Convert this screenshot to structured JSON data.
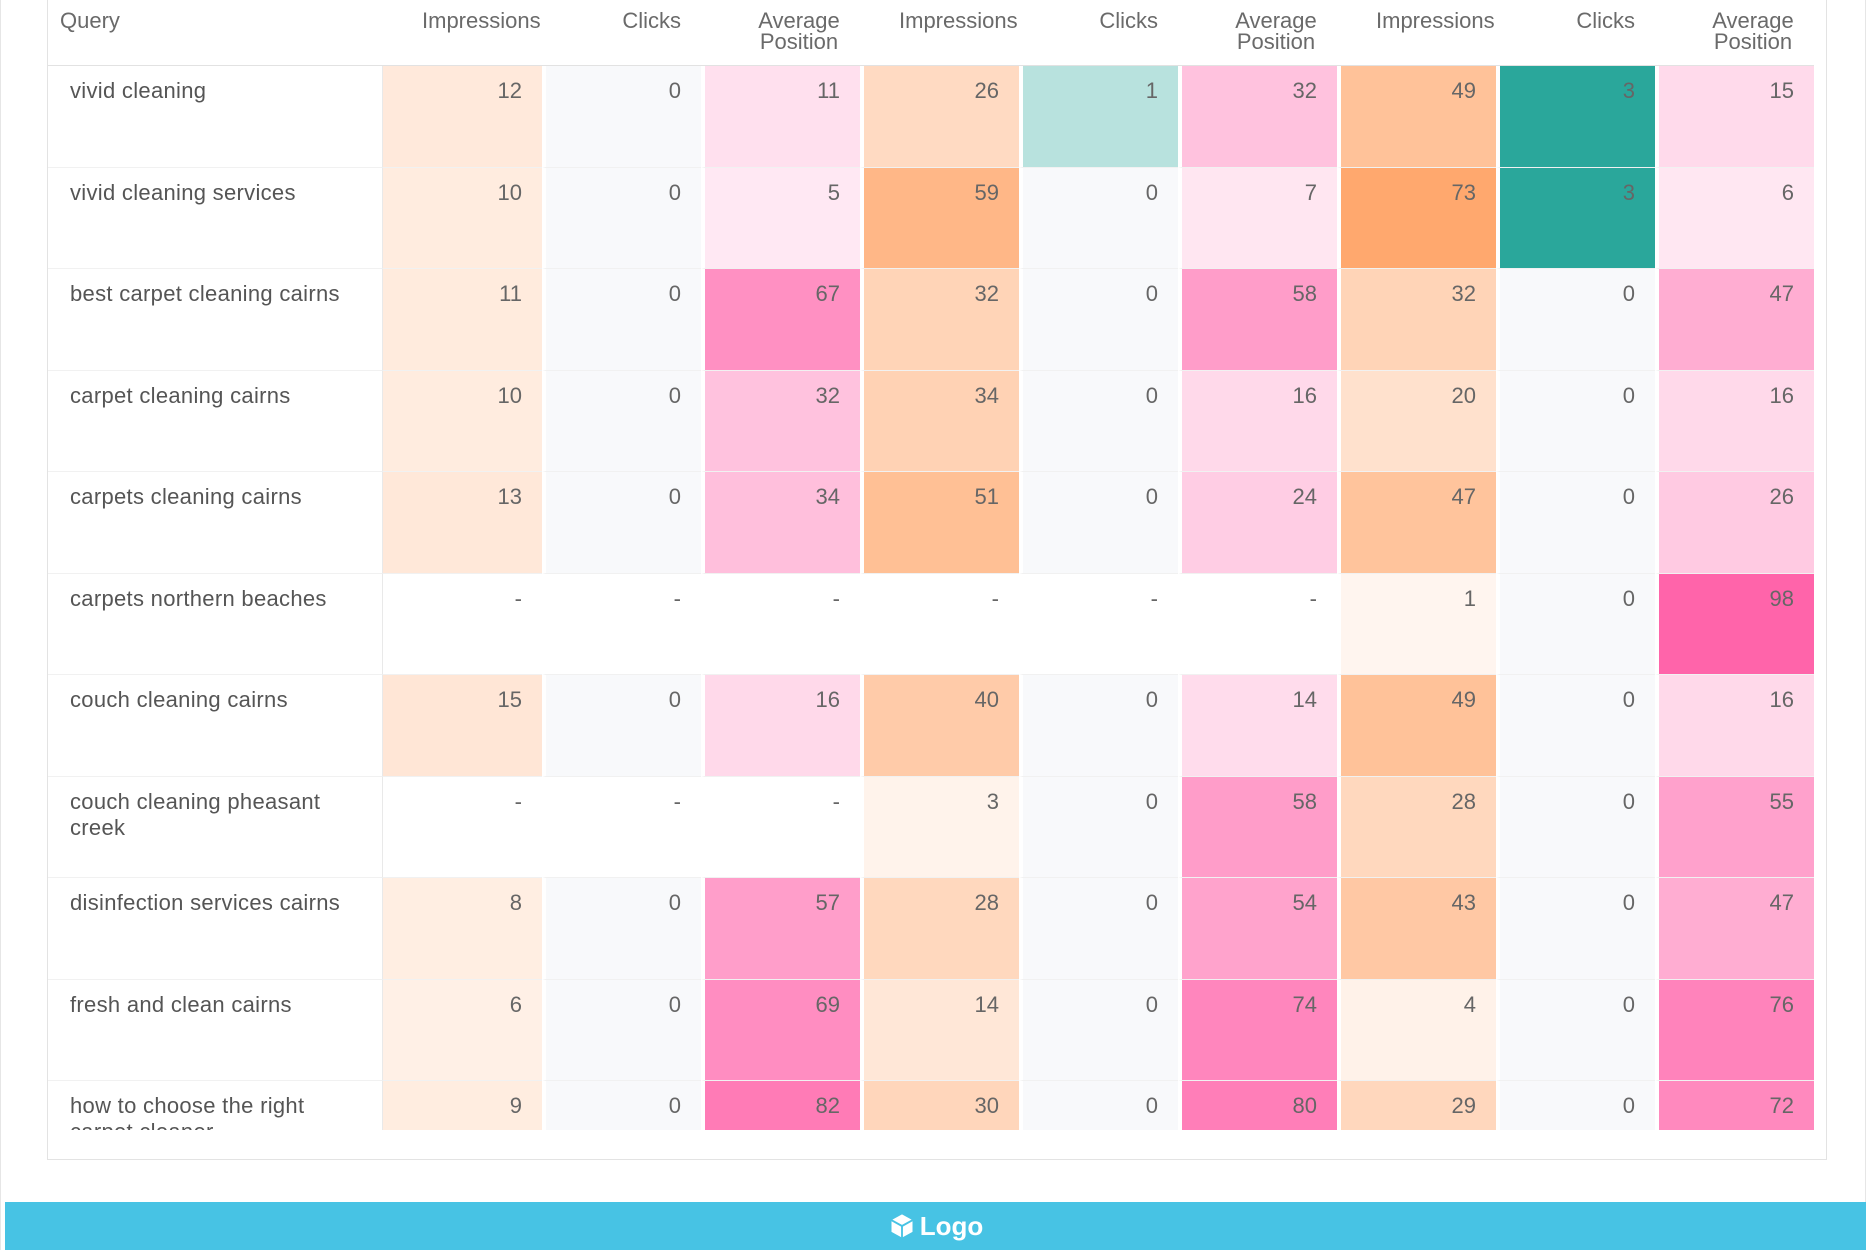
{
  "table": {
    "headers": [
      "Query",
      "Impressions",
      "Clicks",
      "Average Position",
      "Impressions",
      "Clicks",
      "Average Position",
      "Impressions",
      "Clicks",
      "Average Position"
    ],
    "rows": [
      {
        "query": "vivid cleaning",
        "values": [
          "12",
          "0",
          "11",
          "26",
          "1",
          "32",
          "49",
          "3",
          "15"
        ]
      },
      {
        "query": "vivid cleaning services",
        "values": [
          "10",
          "0",
          "5",
          "59",
          "0",
          "7",
          "73",
          "3",
          "6"
        ]
      },
      {
        "query": "best carpet cleaning cairns",
        "values": [
          "11",
          "0",
          "67",
          "32",
          "0",
          "58",
          "32",
          "0",
          "47"
        ]
      },
      {
        "query": "carpet cleaning cairns",
        "values": [
          "10",
          "0",
          "32",
          "34",
          "0",
          "16",
          "20",
          "0",
          "16"
        ]
      },
      {
        "query": "carpets cleaning cairns",
        "values": [
          "13",
          "0",
          "34",
          "51",
          "0",
          "24",
          "47",
          "0",
          "26"
        ]
      },
      {
        "query": "carpets northern beaches",
        "values": [
          "-",
          "-",
          "-",
          "-",
          "-",
          "-",
          "1",
          "0",
          "98"
        ]
      },
      {
        "query": "couch cleaning cairns",
        "values": [
          "15",
          "0",
          "16",
          "40",
          "0",
          "14",
          "49",
          "0",
          "16"
        ]
      },
      {
        "query": "couch cleaning pheasant creek",
        "values": [
          "-",
          "-",
          "-",
          "3",
          "0",
          "58",
          "28",
          "0",
          "55"
        ]
      },
      {
        "query": "disinfection services cairns",
        "values": [
          "8",
          "0",
          "57",
          "28",
          "0",
          "54",
          "43",
          "0",
          "47"
        ]
      },
      {
        "query": "fresh and clean cairns",
        "values": [
          "6",
          "0",
          "69",
          "14",
          "0",
          "74",
          "4",
          "0",
          "76"
        ]
      },
      {
        "query": "how to choose the right carpet cleaner",
        "values": [
          "9",
          "0",
          "82",
          "30",
          "0",
          "80",
          "29",
          "0",
          "72"
        ]
      }
    ]
  },
  "colors": {
    "impressions": "#ffa86e",
    "clicks": "#2aa79b",
    "position": "#ff64aa",
    "empty_clicks": "#f8f9fb",
    "footer_bg": "#47c3e4"
  },
  "footer": {
    "logo_label": "Logo",
    "logo_icon": "cube-icon"
  }
}
